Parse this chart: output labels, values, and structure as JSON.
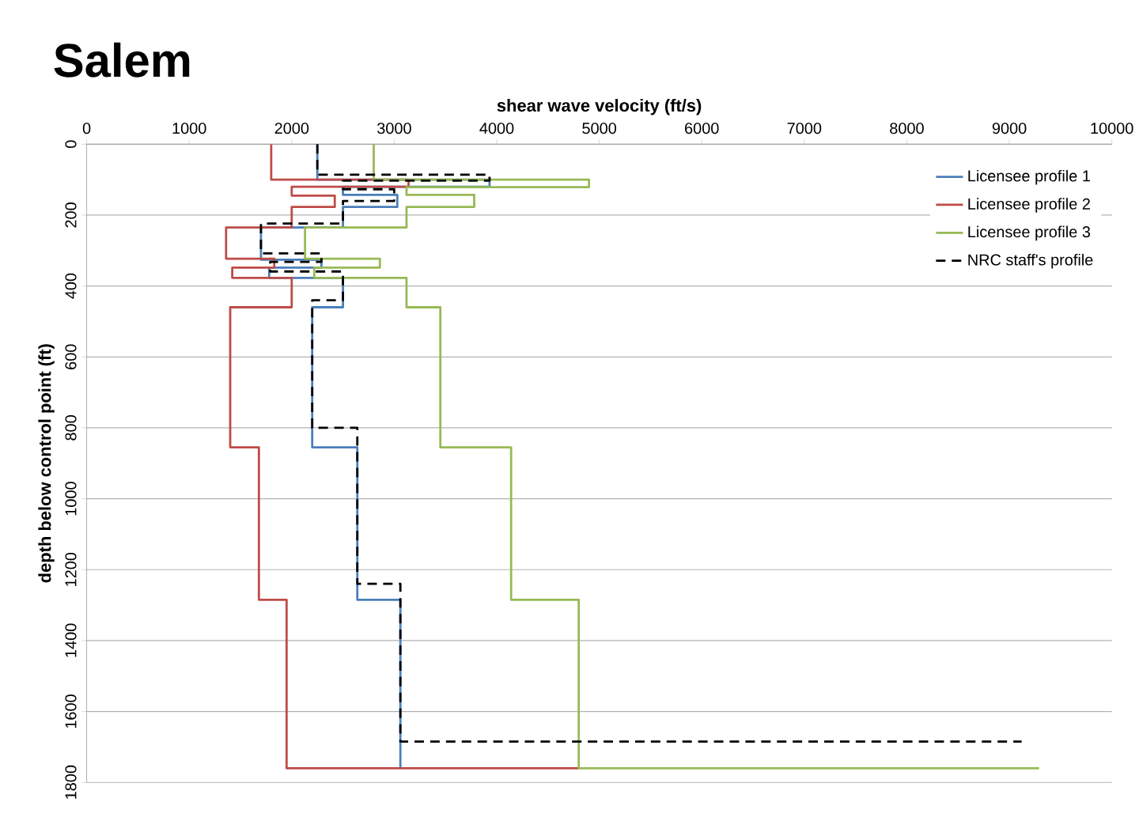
{
  "chart_data": {
    "type": "line",
    "title": "Salem",
    "xlabel": "shear wave velocity (ft/s)",
    "ylabel": "depth below control point (ft)",
    "xlim": [
      0,
      10000
    ],
    "xticks": [
      0,
      1000,
      2000,
      3000,
      4000,
      5000,
      6000,
      7000,
      8000,
      9000,
      10000
    ],
    "ylim": [
      1800,
      0
    ],
    "yticks": [
      0,
      200,
      400,
      600,
      800,
      1000,
      1200,
      1400,
      1600,
      1800
    ],
    "grid": "y",
    "legend": "top right",
    "series": [
      {
        "name": "Licensee profile 1",
        "color": "#4a7ebb",
        "x": [
          2250,
          2250,
          3930,
          3930,
          2500,
          2500,
          3030,
          3030,
          2500,
          2500,
          1700,
          1700,
          2290,
          2290,
          1780,
          1780,
          2500,
          2500,
          2200,
          2200,
          2640,
          2640,
          3060,
          3060
        ],
        "values": [
          0,
          100,
          100,
          120,
          120,
          143,
          143,
          177,
          177,
          235,
          235,
          326,
          326,
          348,
          348,
          377,
          377,
          460,
          460,
          855,
          855,
          1285,
          1285,
          1760
        ]
      },
      {
        "name": "Licensee profile 2",
        "color": "#be4b48",
        "x": [
          1800,
          1800,
          3140,
          3140,
          2000,
          2000,
          2420,
          2420,
          2000,
          2000,
          1360,
          1360,
          1830,
          1830,
          1420,
          1420,
          2000,
          2000,
          1400,
          1400,
          1680,
          1680,
          1950,
          1950,
          4800
        ],
        "values": [
          0,
          100,
          100,
          120,
          120,
          145,
          145,
          177,
          177,
          235,
          235,
          323,
          323,
          348,
          348,
          377,
          377,
          460,
          460,
          855,
          855,
          1285,
          1285,
          1760,
          1760
        ]
      },
      {
        "name": "Licensee profile 3",
        "color": "#98b954",
        "x": [
          2800,
          2800,
          4900,
          4900,
          3120,
          3120,
          3780,
          3780,
          3120,
          3120,
          2130,
          2130,
          2860,
          2860,
          2220,
          2220,
          3120,
          3120,
          3450,
          3450,
          4140,
          4140,
          4800,
          4800,
          9290
        ],
        "values": [
          0,
          100,
          100,
          121,
          121,
          143,
          143,
          177,
          177,
          235,
          235,
          323,
          323,
          348,
          348,
          377,
          377,
          460,
          460,
          855,
          855,
          1285,
          1285,
          1760,
          1760
        ]
      },
      {
        "name": "NRC staff's profile",
        "color": "#000000",
        "line_style": "dashed",
        "x": [
          2250,
          2250,
          3930,
          3930,
          2500,
          2500,
          3000,
          3000,
          2500,
          2500,
          1700,
          1700,
          2290,
          2290,
          1790,
          1790,
          2500,
          2500,
          2200,
          2200,
          2640,
          2640,
          3060,
          3060,
          9120
        ],
        "values": [
          0,
          86,
          86,
          103,
          103,
          127,
          127,
          160,
          160,
          224,
          224,
          308,
          308,
          332,
          332,
          359,
          359,
          440,
          440,
          800,
          800,
          1240,
          1240,
          1685,
          1685
        ]
      }
    ]
  }
}
